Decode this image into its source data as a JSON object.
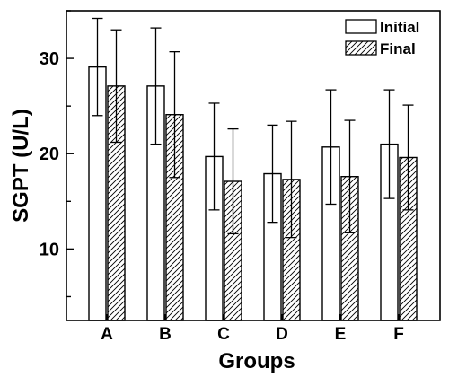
{
  "chart_data": {
    "type": "bar",
    "xlabel": "Groups",
    "ylabel": "SGPT (U/L)",
    "categories": [
      "A",
      "B",
      "C",
      "D",
      "E",
      "F"
    ],
    "ylim": [
      2.5,
      35
    ],
    "yticks": [
      10,
      20,
      30
    ],
    "grid": false,
    "legend_position": "top-right",
    "series": [
      {
        "name": "Initial",
        "fill": "open",
        "values": [
          29.1,
          27.1,
          19.7,
          17.9,
          20.7,
          21.0
        ],
        "errors": [
          5.1,
          6.1,
          5.6,
          5.1,
          6.0,
          5.7
        ]
      },
      {
        "name": "Final",
        "fill": "hatched",
        "values": [
          27.1,
          24.1,
          17.1,
          17.3,
          17.6,
          19.6
        ],
        "errors": [
          5.9,
          6.6,
          5.5,
          6.1,
          5.9,
          5.5
        ]
      }
    ]
  }
}
